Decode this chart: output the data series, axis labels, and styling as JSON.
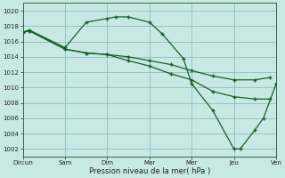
{
  "xlabel": "Pression niveau de la mer( hPa )",
  "background_color": "#c8e8e4",
  "grid_color": "#88c0b8",
  "line_color": "#1a5e28",
  "marker_color": "#1a5e28",
  "ytick_vals": [
    1002,
    1004,
    1006,
    1008,
    1010,
    1012,
    1014,
    1016,
    1018,
    1020
  ],
  "xtick_labels": [
    "Dircun",
    "Sam",
    "Dim",
    "Mar",
    "Mer",
    "Jeu",
    "Ven"
  ],
  "ylim": [
    1001.0,
    1021.0
  ],
  "xlim": [
    0.0,
    6.0
  ],
  "s1_x": [
    0.0,
    0.15,
    1.0,
    1.5,
    2.0,
    2.2,
    2.5,
    3.0,
    3.3,
    3.8,
    4.0,
    4.5,
    5.0,
    5.15,
    5.5,
    5.7,
    6.0
  ],
  "s1_y": [
    1017.2,
    1017.5,
    1015.2,
    1018.5,
    1019.0,
    1019.2,
    1019.2,
    1018.5,
    1017.0,
    1013.8,
    1010.5,
    1007.0,
    1002.0,
    1002.0,
    1004.5,
    1006.0,
    1010.5
  ],
  "s2_x": [
    0.0,
    0.15,
    1.0,
    1.5,
    2.0,
    2.5,
    3.0,
    3.5,
    4.0,
    4.5,
    5.0,
    5.5,
    5.85
  ],
  "s2_y": [
    1017.2,
    1017.4,
    1015.0,
    1014.5,
    1014.3,
    1014.0,
    1013.5,
    1013.0,
    1012.2,
    1011.5,
    1011.0,
    1011.0,
    1011.3
  ],
  "s3_x": [
    0.0,
    0.15,
    1.0,
    1.5,
    2.0,
    2.5,
    3.0,
    3.5,
    4.0,
    4.5,
    5.0,
    5.5,
    5.85
  ],
  "s3_y": [
    1017.2,
    1017.4,
    1015.0,
    1014.5,
    1014.3,
    1013.5,
    1012.8,
    1011.8,
    1011.0,
    1009.5,
    1008.8,
    1008.5,
    1008.5
  ]
}
